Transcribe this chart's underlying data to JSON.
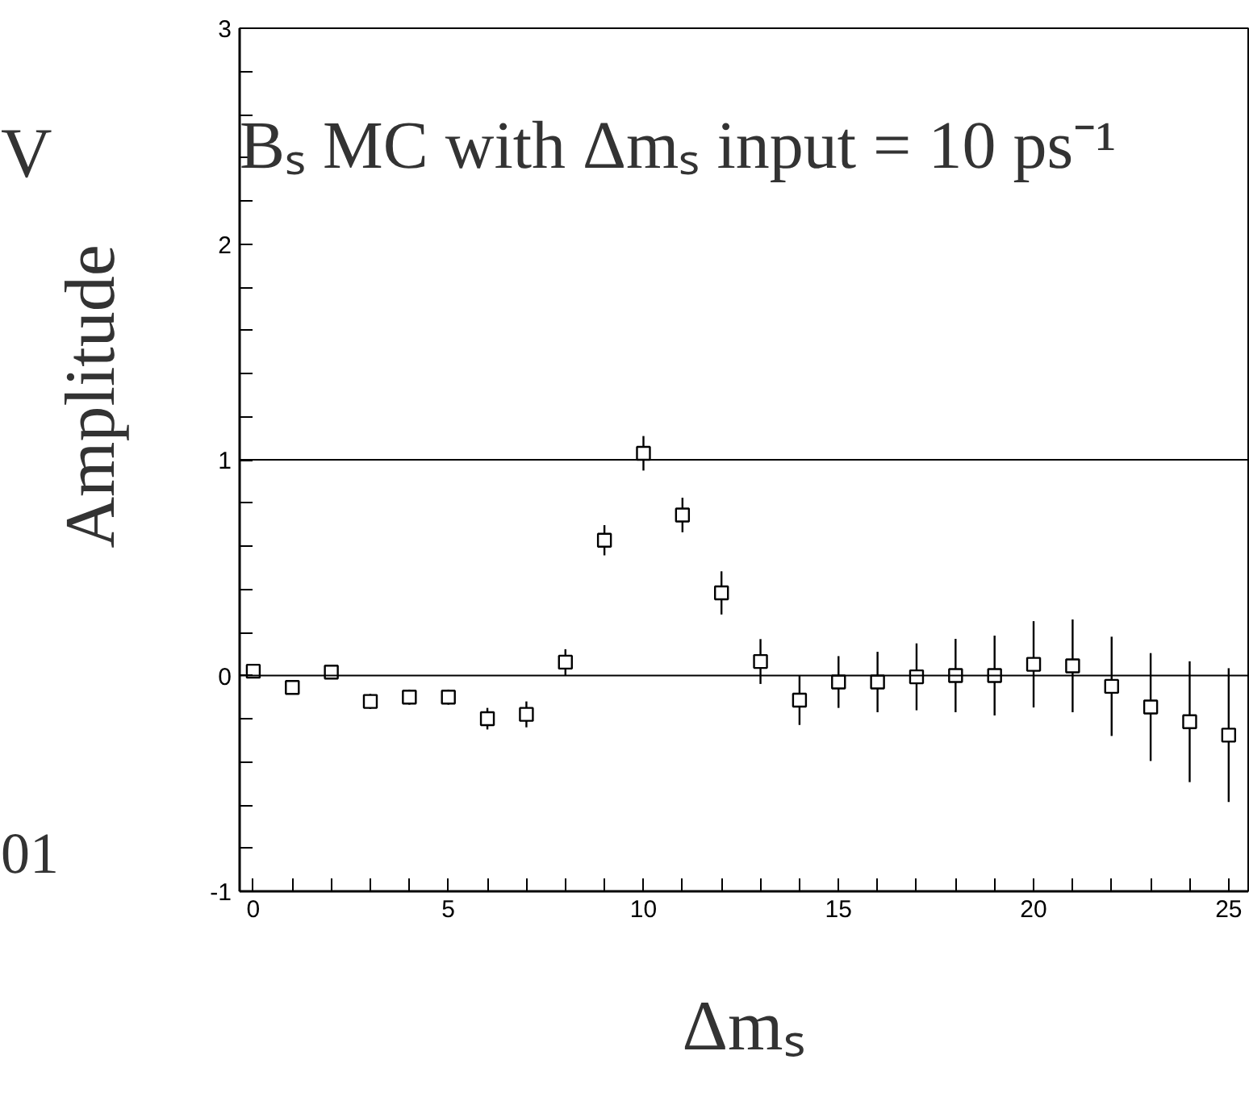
{
  "chart_data": {
    "type": "scatter",
    "marker": "square",
    "xlabel": "Δmₛ",
    "ylabel": "Amplitude",
    "annotations": [
      "Bₛ MC with Δmₛ input = 10 ps⁻¹",
      "V",
      "01"
    ],
    "x": [
      0,
      1,
      2,
      3,
      4,
      5,
      6,
      7,
      8,
      9,
      10,
      11,
      12,
      13,
      14,
      15,
      16,
      17,
      18,
      19,
      20,
      21,
      22,
      23,
      24,
      25
    ],
    "series": [
      {
        "color": "#000000",
        "values": [
          0.02,
          -0.055,
          0.016,
          -0.12,
          -0.1,
          -0.1,
          -0.2,
          -0.18,
          0.062,
          0.627,
          1.03,
          0.744,
          0.383,
          0.065,
          -0.114,
          -0.03,
          -0.03,
          -0.006,
          0,
          0,
          0.052,
          0.045,
          -0.05,
          -0.146,
          -0.214,
          -0.276
        ],
        "errors": [
          0.03,
          0.03,
          0.03,
          0.035,
          0.035,
          0.035,
          0.05,
          0.06,
          0.06,
          0.07,
          0.08,
          0.08,
          0.1,
          0.104,
          0.115,
          0.12,
          0.14,
          0.155,
          0.17,
          0.185,
          0.2,
          0.215,
          0.23,
          0.25,
          0.28,
          0.31
        ]
      }
    ],
    "xlim": [
      -0.35,
      25.5
    ],
    "ylim": [
      -1,
      3
    ],
    "xticks": [
      0,
      {
        "value": 1,
        "label": null
      },
      {
        "value": 2,
        "label": null
      },
      {
        "value": 3,
        "label": null
      },
      {
        "value": 4,
        "label": null
      },
      5,
      {
        "value": 6,
        "label": null
      },
      {
        "value": 7,
        "label": null
      },
      {
        "value": 8,
        "label": null
      },
      {
        "value": 9,
        "label": null
      },
      10,
      {
        "value": 11,
        "label": null
      },
      {
        "value": 12,
        "label": null
      },
      {
        "value": 13,
        "label": null
      },
      {
        "value": 14,
        "label": null
      },
      15,
      {
        "value": 16,
        "label": null
      },
      {
        "value": 17,
        "label": null
      },
      {
        "value": 18,
        "label": null
      },
      {
        "value": 19,
        "label": null
      },
      20,
      {
        "value": 21,
        "label": null
      },
      {
        "value": 22,
        "label": null
      },
      {
        "value": 23,
        "label": null
      },
      {
        "value": 24,
        "label": null
      },
      25
    ],
    "yticks": [
      -1,
      {
        "value": -0.8,
        "label": null
      },
      {
        "value": -0.6,
        "label": null
      },
      {
        "value": -0.4,
        "label": null
      },
      {
        "value": -0.2,
        "label": null
      },
      0,
      {
        "value": 0.2,
        "label": null
      },
      {
        "value": 0.4,
        "label": null
      },
      {
        "value": 0.6,
        "label": null
      },
      {
        "value": 0.8,
        "label": null
      },
      1,
      {
        "value": 1.2,
        "label": null
      },
      {
        "value": 1.4,
        "label": null
      },
      {
        "value": 1.6,
        "label": null
      },
      {
        "value": 1.8,
        "label": null
      },
      2,
      {
        "value": 2.2,
        "label": null
      },
      {
        "value": 2.4,
        "label": null
      },
      {
        "value": 2.6,
        "label": null
      },
      {
        "value": 2.8,
        "label": null
      },
      3
    ],
    "ref_lines": [
      {
        "axis": "y",
        "value": 0,
        "label": null
      },
      {
        "axis": "y",
        "value": 1,
        "label": null
      }
    ],
    "grid": false
  }
}
